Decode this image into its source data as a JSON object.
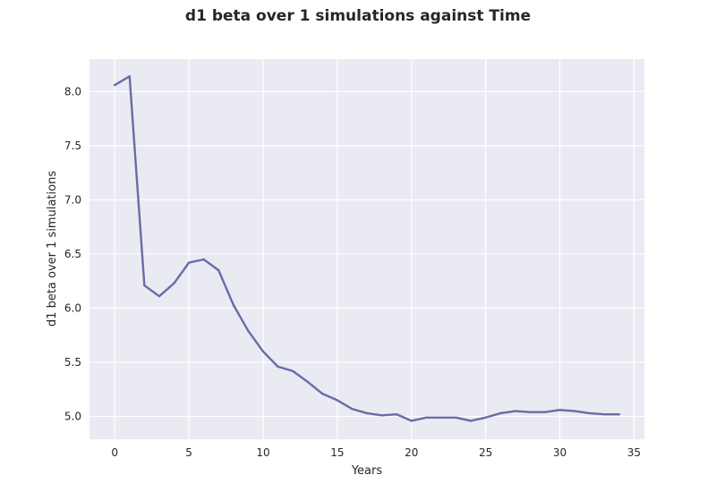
{
  "chart_data": {
    "type": "line",
    "title": "d1 beta over 1 simulations against Time",
    "xlabel": "Years",
    "ylabel": "d1 beta over 1 simulations",
    "xlim": [
      -1.7,
      35.7
    ],
    "ylim": [
      4.79,
      8.3
    ],
    "xticks": [
      0,
      5,
      10,
      15,
      20,
      25,
      30,
      35
    ],
    "yticks": [
      5.0,
      5.5,
      6.0,
      6.5,
      7.0,
      7.5,
      8.0
    ],
    "xtick_labels": [
      "0",
      "5",
      "10",
      "15",
      "20",
      "25",
      "30",
      "35"
    ],
    "ytick_labels": [
      "5.0",
      "5.5",
      "6.0",
      "6.5",
      "7.0",
      "7.5",
      "8.0"
    ],
    "grid": true,
    "legend": "none",
    "series": [
      {
        "color": "#6b6aa8",
        "x": [
          0,
          1,
          2,
          3,
          4,
          5,
          6,
          7,
          8,
          9,
          10,
          11,
          12,
          13,
          14,
          15,
          16,
          17,
          18,
          19,
          20,
          21,
          22,
          23,
          24,
          25,
          26,
          27,
          28,
          29,
          30,
          31,
          32,
          33,
          34
        ],
        "y": [
          8.06,
          8.14,
          6.21,
          6.11,
          6.23,
          6.42,
          6.45,
          6.35,
          6.03,
          5.79,
          5.6,
          5.46,
          5.42,
          5.32,
          5.21,
          5.15,
          5.07,
          5.03,
          5.01,
          5.02,
          4.96,
          4.99,
          4.99,
          4.99,
          4.96,
          4.99,
          5.03,
          5.05,
          5.04,
          5.04,
          5.06,
          5.05,
          5.03,
          5.02,
          5.02
        ]
      }
    ]
  }
}
